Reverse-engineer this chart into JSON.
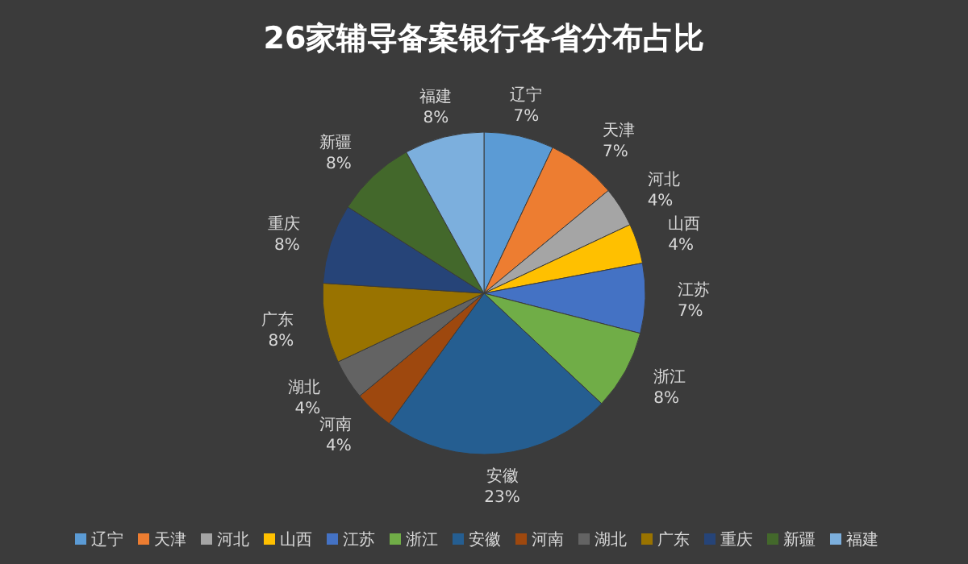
{
  "chart_data": {
    "type": "pie",
    "title": "26家辅导备案银行各省分布占比",
    "categories": [
      "辽宁",
      "天津",
      "河北",
      "山西",
      "江苏",
      "浙江",
      "安徽",
      "河南",
      "湖北",
      "广东",
      "重庆",
      "新疆",
      "福建"
    ],
    "values": [
      7,
      7,
      4,
      4,
      7,
      8,
      23,
      4,
      4,
      8,
      8,
      8,
      8
    ],
    "value_labels": [
      "7%",
      "7%",
      "4%",
      "4%",
      "7%",
      "8%",
      "23%",
      "4%",
      "4%",
      "8%",
      "8%",
      "8%",
      "8%"
    ],
    "colors": [
      "#5b9bd5",
      "#ed7d31",
      "#a5a5a5",
      "#ffc000",
      "#4472c4",
      "#70ad47",
      "#255e91",
      "#9e480e",
      "#636363",
      "#997300",
      "#264478",
      "#43682b",
      "#7cafdd"
    ],
    "legend": "bottom"
  }
}
